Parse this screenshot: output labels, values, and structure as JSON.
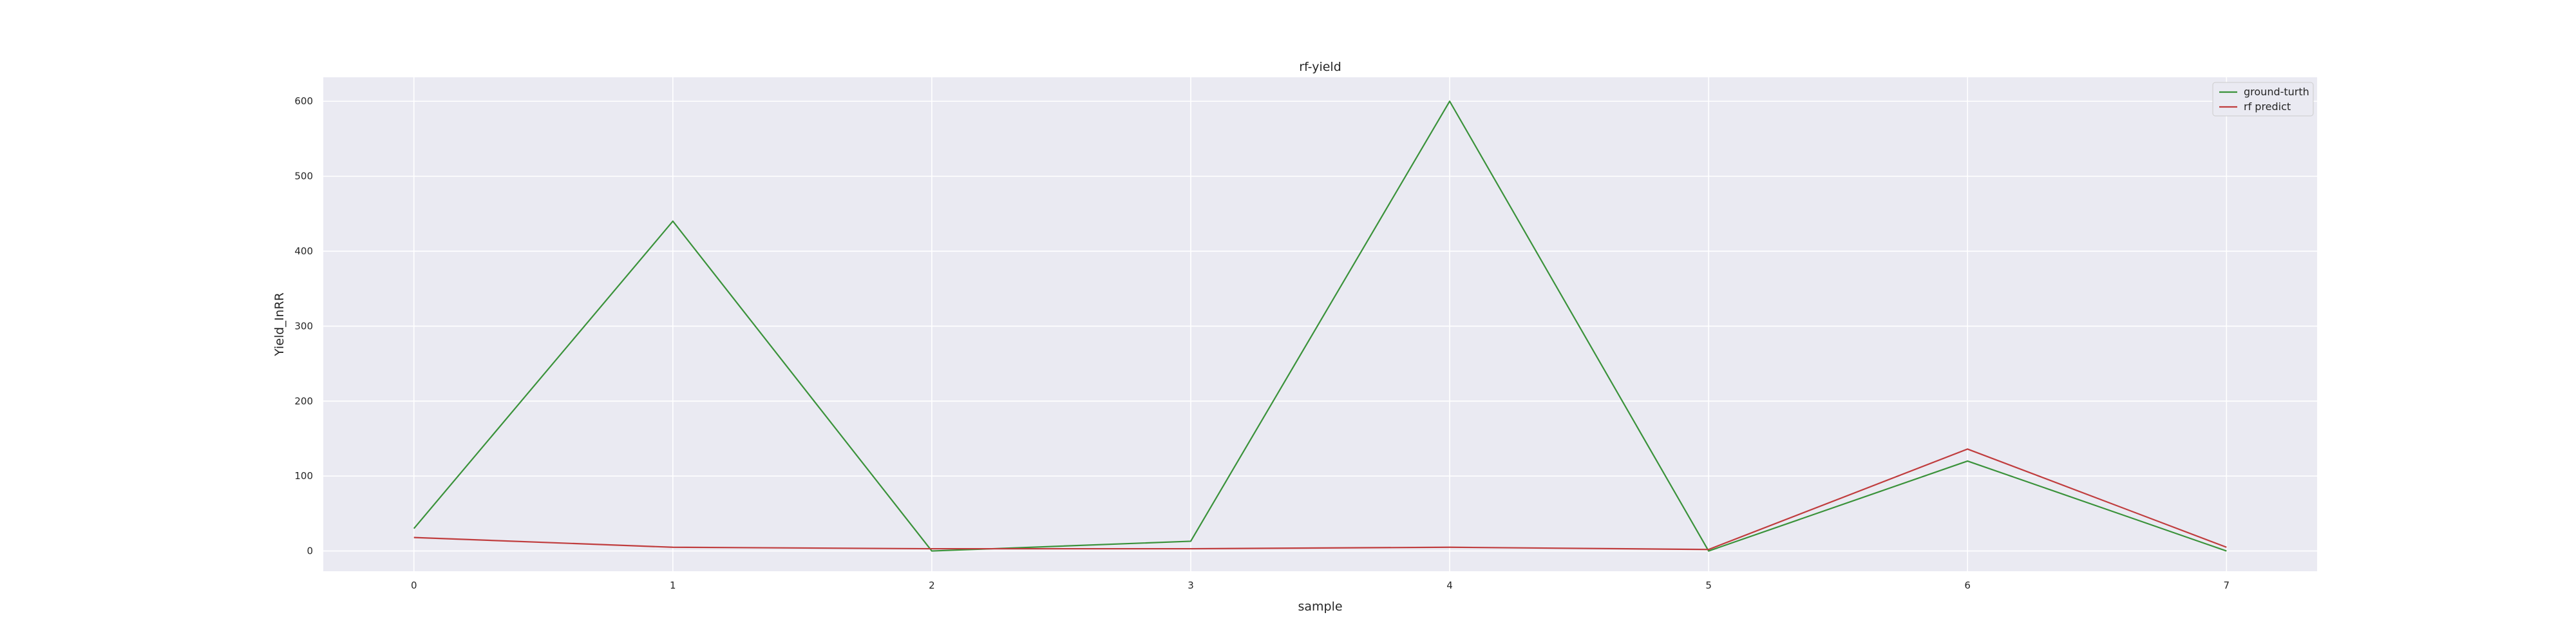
{
  "chart_data": {
    "type": "line",
    "title": "rf-yield",
    "xlabel": "sample",
    "ylabel": "Yield_InRR",
    "x": [
      0,
      1,
      2,
      3,
      4,
      5,
      6,
      7
    ],
    "xlim": [
      -0.35,
      7.35
    ],
    "ylim": [
      -27,
      632
    ],
    "xticks": [
      0,
      1,
      2,
      3,
      4,
      5,
      6,
      7
    ],
    "yticks": [
      0,
      100,
      200,
      300,
      400,
      500,
      600
    ],
    "grid": true,
    "legend_position": "top-right",
    "background_color": "#eaeaf2",
    "series": [
      {
        "name": "ground-turth",
        "color": "#3a923a",
        "values": [
          30,
          440,
          0,
          13,
          600,
          0,
          120,
          0
        ]
      },
      {
        "name": "rf predict",
        "color": "#c03d3e",
        "values": [
          18,
          5,
          3,
          3,
          5,
          2,
          136,
          5
        ]
      }
    ]
  }
}
